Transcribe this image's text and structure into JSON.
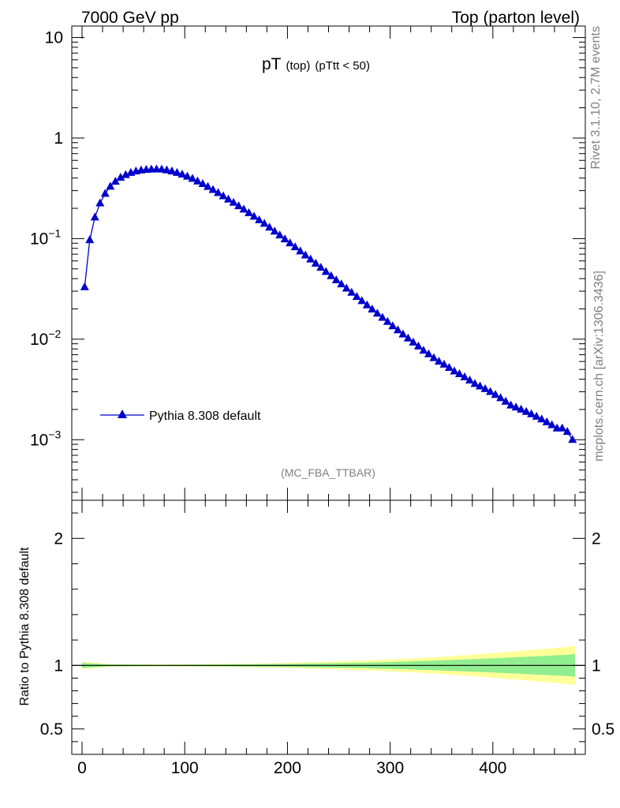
{
  "header": {
    "left": "7000 GeV pp",
    "right": "Top (parton level)"
  },
  "plot_title": {
    "main": "pT",
    "sub1": "(top)",
    "sub2": "(pTtt < 50)"
  },
  "analysis_tag": "(MC_FBA_TTBAR)",
  "side_labels": {
    "rivet": "Rivet 3.1.10,  2.7M events",
    "mcplots": "mcplots.cern.ch [arXiv:1306.3436]"
  },
  "ratio_ylabel": "Ratio to Pythia 8.308 default",
  "colors": {
    "series": "#0000cc",
    "band_inner": "#90ee90",
    "band_outer": "#ffff99",
    "axis": "#000000"
  },
  "chart_data": [
    {
      "type": "line",
      "yscale": "log",
      "xlim": [
        -10,
        490
      ],
      "ylim": [
        0.00025,
        13
      ],
      "yticks": [
        {
          "value": 10,
          "label": "10"
        },
        {
          "value": 1,
          "label": "1"
        },
        {
          "value": 0.1,
          "label": "10",
          "exp": "−1"
        },
        {
          "value": 0.01,
          "label": "10",
          "exp": "−2"
        },
        {
          "value": 0.001,
          "label": "10",
          "exp": "−3"
        }
      ],
      "legend": {
        "label": "Pythia 8.308 default",
        "placement": "bottom-left"
      },
      "series": [
        {
          "name": "Pythia 8.308 default",
          "marker": "triangle-up",
          "x": [
            2.5,
            7.5,
            12.5,
            17.5,
            22.5,
            27.5,
            32.5,
            37.5,
            42.5,
            47.5,
            52.5,
            57.5,
            62.5,
            67.5,
            72.5,
            77.5,
            82.5,
            87.5,
            92.5,
            97.5,
            102.5,
            107.5,
            112.5,
            117.5,
            122.5,
            127.5,
            132.5,
            137.5,
            142.5,
            147.5,
            152.5,
            157.5,
            162.5,
            167.5,
            172.5,
            177.5,
            182.5,
            187.5,
            192.5,
            197.5,
            202.5,
            207.5,
            212.5,
            217.5,
            222.5,
            227.5,
            232.5,
            237.5,
            242.5,
            247.5,
            252.5,
            257.5,
            262.5,
            267.5,
            272.5,
            277.5,
            282.5,
            287.5,
            292.5,
            297.5,
            302.5,
            307.5,
            312.5,
            317.5,
            322.5,
            327.5,
            332.5,
            337.5,
            342.5,
            347.5,
            352.5,
            357.5,
            362.5,
            367.5,
            372.5,
            377.5,
            382.5,
            387.5,
            392.5,
            397.5,
            402.5,
            407.5,
            412.5,
            417.5,
            422.5,
            427.5,
            432.5,
            437.5,
            442.5,
            447.5,
            452.5,
            457.5,
            462.5,
            467.5,
            472.5,
            477.5
          ],
          "y": [
            0.033,
            0.097,
            0.163,
            0.225,
            0.28,
            0.33,
            0.37,
            0.405,
            0.43,
            0.452,
            0.468,
            0.478,
            0.485,
            0.488,
            0.49,
            0.488,
            0.48,
            0.468,
            0.452,
            0.435,
            0.415,
            0.395,
            0.372,
            0.35,
            0.328,
            0.306,
            0.285,
            0.265,
            0.246,
            0.228,
            0.211,
            0.195,
            0.18,
            0.166,
            0.153,
            0.141,
            0.129,
            0.118,
            0.108,
            0.0987,
            0.0902,
            0.0823,
            0.075,
            0.0683,
            0.0622,
            0.0566,
            0.0515,
            0.0468,
            0.0425,
            0.0387,
            0.0352,
            0.032,
            0.0291,
            0.0264,
            0.024,
            0.0218,
            0.0198,
            0.018,
            0.0164,
            0.0149,
            0.0135,
            0.0123,
            0.0112,
            0.0102,
            0.0093,
            0.0085,
            0.0077,
            0.0071,
            0.0065,
            0.006,
            0.0056,
            0.0052,
            0.0048,
            0.0045,
            0.0042,
            0.0039,
            0.0036,
            0.0034,
            0.0032,
            0.003,
            0.0028,
            0.0026,
            0.0024,
            0.0022,
            0.0021,
            0.002,
            0.0019,
            0.0018,
            0.0017,
            0.0016,
            0.0015,
            0.0014,
            0.0013,
            0.0013,
            0.0012,
            0.001
          ]
        }
      ]
    },
    {
      "type": "area",
      "xlim": [
        -10,
        490
      ],
      "ylim": [
        0.3,
        2.3
      ],
      "ylabel": "Ratio to Pythia 8.308 default",
      "xticks": [
        0,
        100,
        200,
        300,
        400
      ],
      "yticks": [
        0.5,
        1,
        2
      ],
      "reference_line": 1,
      "band": {
        "x": [
          0,
          25,
          50,
          75,
          100,
          125,
          150,
          175,
          200,
          225,
          250,
          275,
          300,
          325,
          350,
          375,
          400,
          425,
          450,
          475,
          480
        ],
        "inner": [
          0.02,
          0.008,
          0.006,
          0.005,
          0.006,
          0.007,
          0.008,
          0.01,
          0.012,
          0.015,
          0.018,
          0.022,
          0.027,
          0.033,
          0.04,
          0.048,
          0.056,
          0.065,
          0.075,
          0.085,
          0.09
        ],
        "outer": [
          0.03,
          0.012,
          0.009,
          0.008,
          0.009,
          0.011,
          0.013,
          0.016,
          0.02,
          0.025,
          0.031,
          0.038,
          0.046,
          0.056,
          0.068,
          0.082,
          0.097,
          0.113,
          0.13,
          0.148,
          0.155
        ]
      }
    }
  ]
}
